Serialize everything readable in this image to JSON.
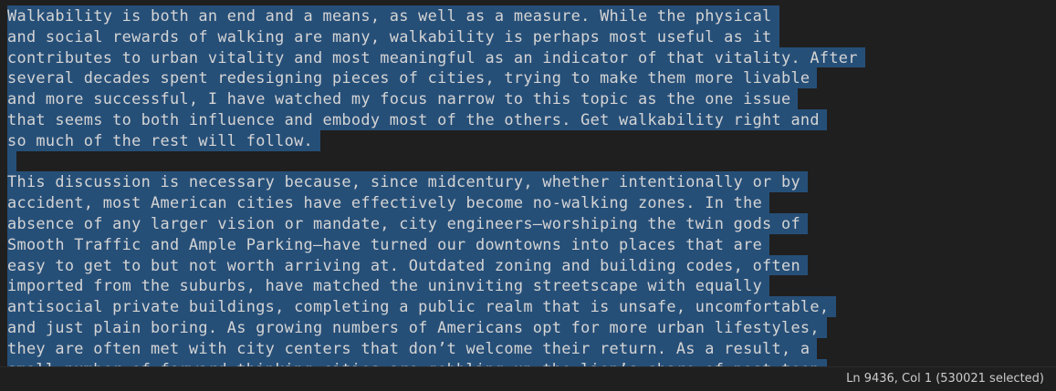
{
  "editor": {
    "lines": [
      "Walkability is both an end and a means, as well as a measure. While the physical",
      "and social rewards of walking are many, walkability is perhaps most useful as it",
      "contributes to urban vitality and most meaningful as an indicator of that vitality. After",
      "several decades spent redesigning pieces of cities, trying to make them more livable",
      "and more successful, I have watched my focus narrow to this topic as the one issue",
      "that seems to both influence and embody most of the others. Get walkability right and",
      "so much of the rest will follow.",
      "",
      "This discussion is necessary because, since midcentury, whether intentionally or by",
      "accident, most American cities have effectively become no-walking zones. In the",
      "absence of any larger vision or mandate, city engineers—worshiping the twin gods of",
      "Smooth Traffic and Ample Parking—have turned our downtowns into places that are",
      "easy to get to but not worth arriving at. Outdated zoning and building codes, often",
      "imported from the suburbs, have matched the uninviting streetscape with equally",
      "antisocial private buildings, completing a public realm that is unsafe, uncomfortable,",
      "and just plain boring. As growing numbers of Americans opt for more urban lifestyles,",
      "they are often met with city centers that don’t welcome their return. As a result, a",
      "small number of forward-thinking cities are gobbling up the lion’s share of post-teen"
    ]
  },
  "status": {
    "position": "Ln 9436, Col 1 (530021 selected)"
  },
  "colors": {
    "background": "#1f1f1f",
    "selection": "#264f78",
    "text": "#d4d4d4"
  }
}
